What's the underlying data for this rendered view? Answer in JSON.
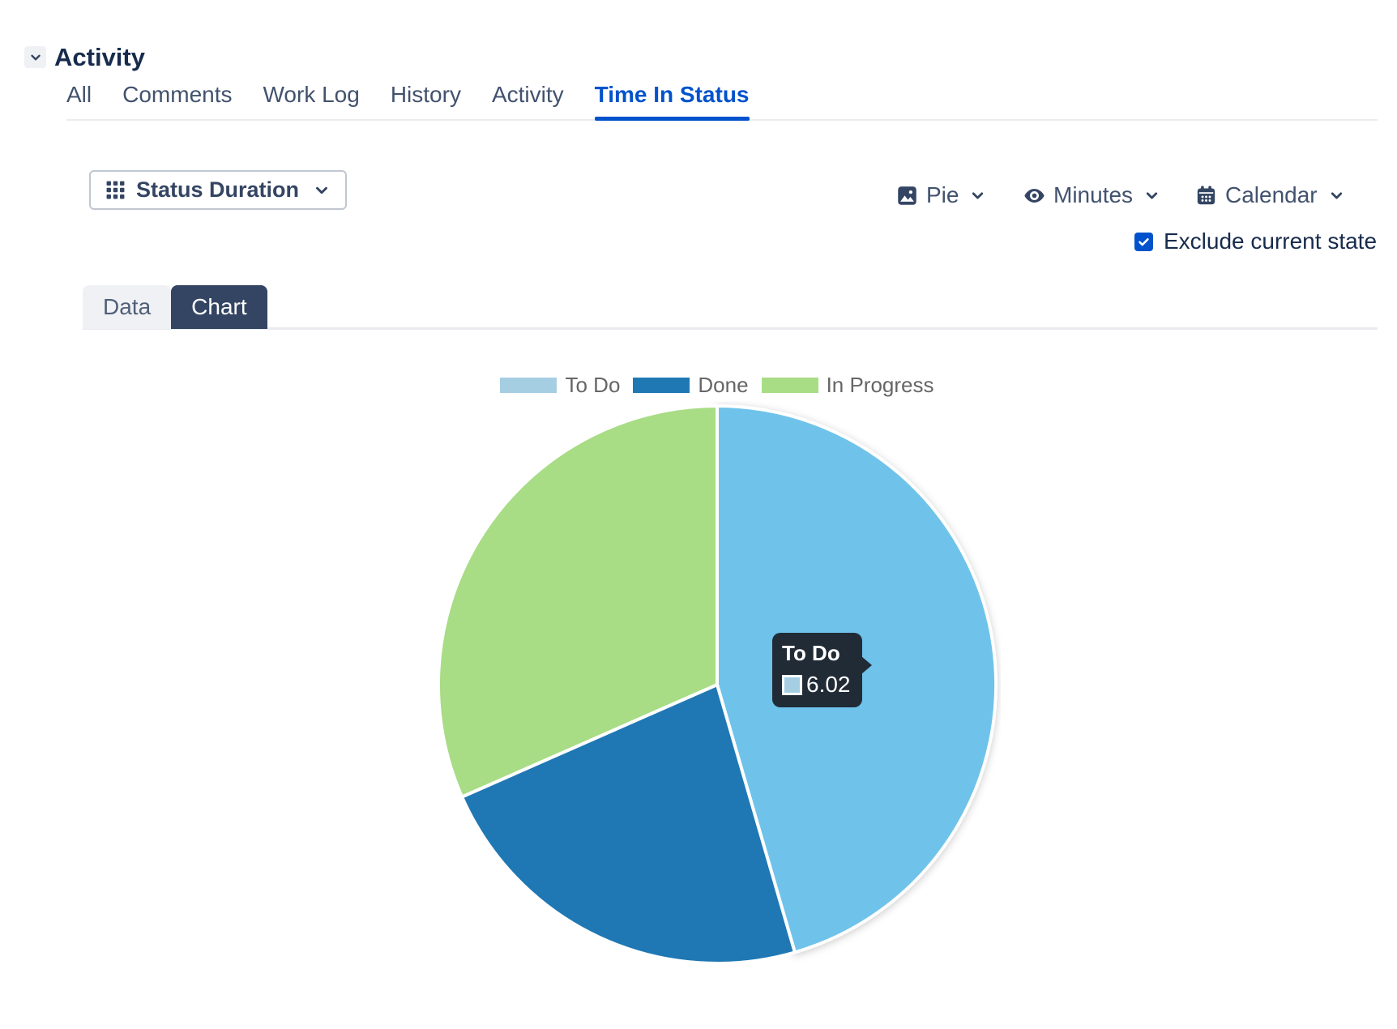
{
  "section": {
    "title": "Activity"
  },
  "tabs": {
    "items": [
      "All",
      "Comments",
      "Work Log",
      "History",
      "Activity",
      "Time In Status"
    ],
    "active": "Time In Status"
  },
  "controls": {
    "status_duration": {
      "label": "Status Duration"
    },
    "chart_type": {
      "label": "Pie"
    },
    "unit": {
      "label": "Minutes"
    },
    "period": {
      "label": "Calendar"
    },
    "exclude": {
      "label": "Exclude current state",
      "checked": true
    }
  },
  "view_tabs": {
    "items": [
      {
        "label": "Data",
        "active": false
      },
      {
        "label": "Chart",
        "active": true
      }
    ]
  },
  "chart_data": {
    "type": "pie",
    "unit": "minutes",
    "legend_position": "top",
    "slices": [
      {
        "label": "To Do",
        "value": 6.02,
        "color": "#a6cee3",
        "displayed_color": "#6fc3ea",
        "hovered": true
      },
      {
        "label": "Done",
        "value": 3.03,
        "color": "#1f78b4",
        "displayed_color": "#1f78b4",
        "hovered": false
      },
      {
        "label": "In Progress",
        "value": 4.18,
        "color": "#a8dc85",
        "displayed_color": "#a8dc85",
        "hovered": false
      }
    ],
    "tooltip": {
      "title": "To Do",
      "value": "6.02",
      "swatch_color": "#a6cee3"
    }
  },
  "colors": {
    "accent": "#0052cc",
    "heading": "#172b4d",
    "tab_text": "#42526e",
    "control_text": "#344563",
    "legend_text": "#666666",
    "tab_row_border": "#ebecf0",
    "dark_tab_bg": "#344563",
    "light_tab_bg": "#f0f1f4",
    "tooltip_bg": "#212b36",
    "slice_border": "#ffffff"
  }
}
